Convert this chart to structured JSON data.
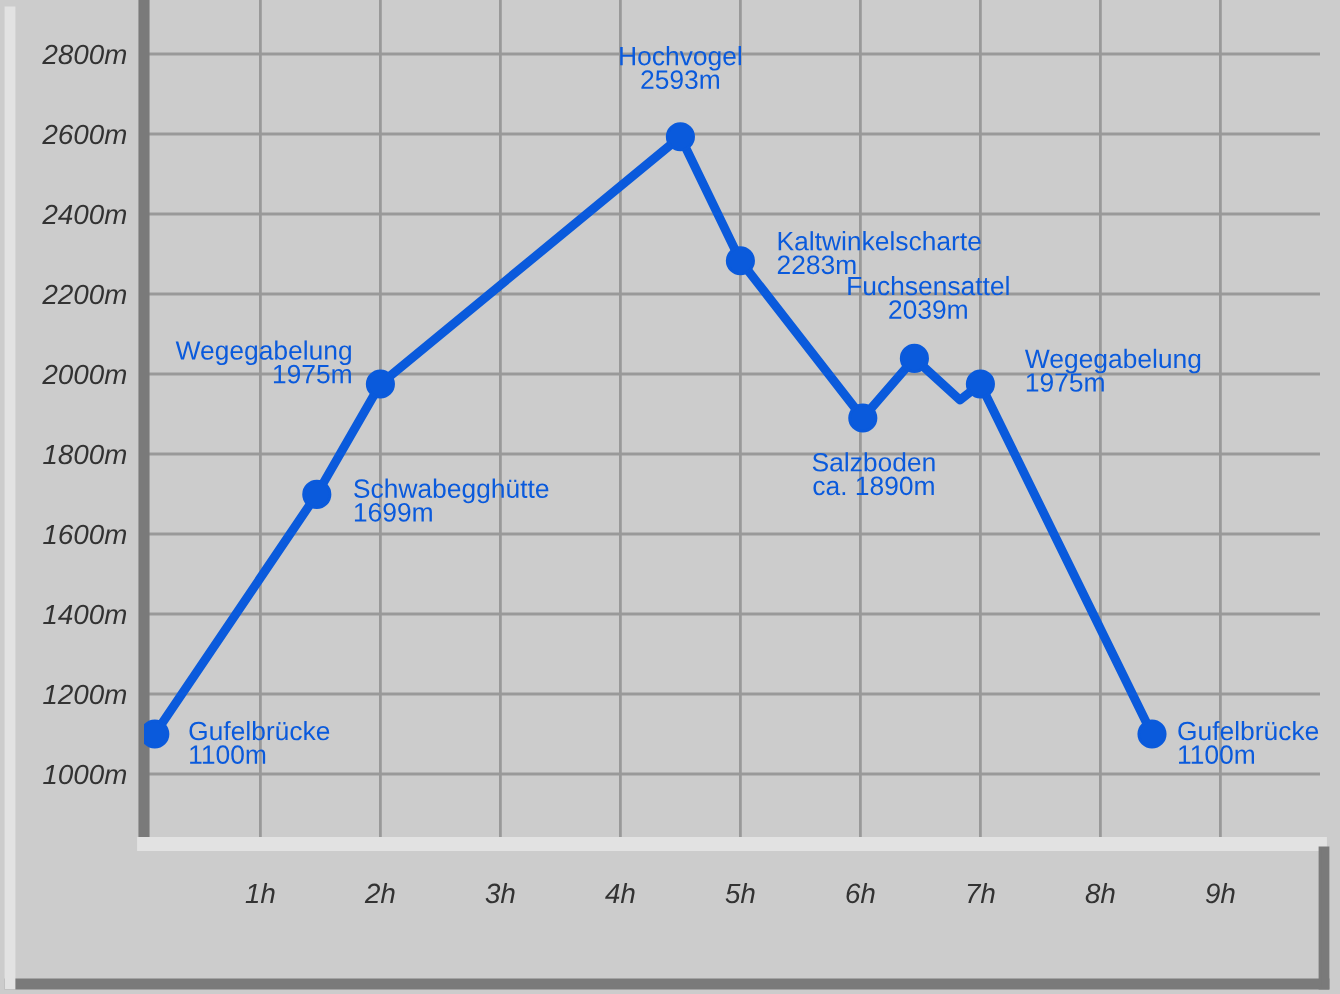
{
  "chart_data": {
    "type": "line",
    "xlim": [
      0.03,
      9.83
    ],
    "ylim": [
      825,
      2935
    ],
    "xticks": [
      {
        "value": 1,
        "label": "1h"
      },
      {
        "value": 2,
        "label": "2h"
      },
      {
        "value": 3,
        "label": "3h"
      },
      {
        "value": 4,
        "label": "4h"
      },
      {
        "value": 5,
        "label": "5h"
      },
      {
        "value": 6,
        "label": "6h"
      },
      {
        "value": 7,
        "label": "7h"
      },
      {
        "value": 8,
        "label": "8h"
      },
      {
        "value": 9,
        "label": "9h"
      }
    ],
    "yticks": [
      {
        "value": 1000,
        "label": "1000m"
      },
      {
        "value": 1200,
        "label": "1200m"
      },
      {
        "value": 1400,
        "label": "1400m"
      },
      {
        "value": 1600,
        "label": "1600m"
      },
      {
        "value": 1800,
        "label": "1800m"
      },
      {
        "value": 2000,
        "label": "2000m"
      },
      {
        "value": 2200,
        "label": "2200m"
      },
      {
        "value": 2400,
        "label": "2400m"
      },
      {
        "value": 2600,
        "label": "2600m"
      },
      {
        "value": 2800,
        "label": "2800m"
      }
    ],
    "grid": true,
    "series": [
      {
        "color": "#0a5adc",
        "marker": "none",
        "x": [
          0.12,
          1.47,
          2.0,
          4.5,
          5.0,
          6.02,
          6.45,
          6.83,
          7.0,
          8.43
        ],
        "values": [
          1100,
          1699,
          1975,
          2593,
          2283,
          1890,
          2039,
          1935,
          1975,
          1100
        ]
      },
      {
        "type": "scatter",
        "color": "#0a5adc",
        "marker": "circle",
        "x": [
          0.12,
          1.47,
          2.0,
          4.5,
          5.0,
          6.02,
          6.45,
          7.0,
          8.43
        ],
        "values": [
          1100,
          1699,
          1975,
          2593,
          2283,
          1890,
          2039,
          1975,
          1100
        ]
      }
    ],
    "annotations": [
      {
        "text": "Gufelbrücke\n1100m",
        "x": 0.12,
        "y": 1100
      },
      {
        "text": "Schwabegghütte\n1699m",
        "x": 1.47,
        "y": 1699
      },
      {
        "text": "Wegegabelung\n1975m",
        "x": 2.0,
        "y": 1975
      },
      {
        "text": "Hochvogel\n2593m",
        "x": 4.5,
        "y": 2593
      },
      {
        "text": "Kaltwinkelscharte\n2283m",
        "x": 5.0,
        "y": 2283
      },
      {
        "text": "Salzboden\nca. 1890m",
        "x": 6.02,
        "y": 1890
      },
      {
        "text": "Fuchsensattel\n2039m",
        "x": 6.45,
        "y": 2039
      },
      {
        "text": "Wegegabelung\n1975m",
        "x": 7.0,
        "y": 1975
      },
      {
        "text": "Gufelbrücke\n1100m",
        "x": 8.43,
        "y": 1100
      }
    ]
  }
}
